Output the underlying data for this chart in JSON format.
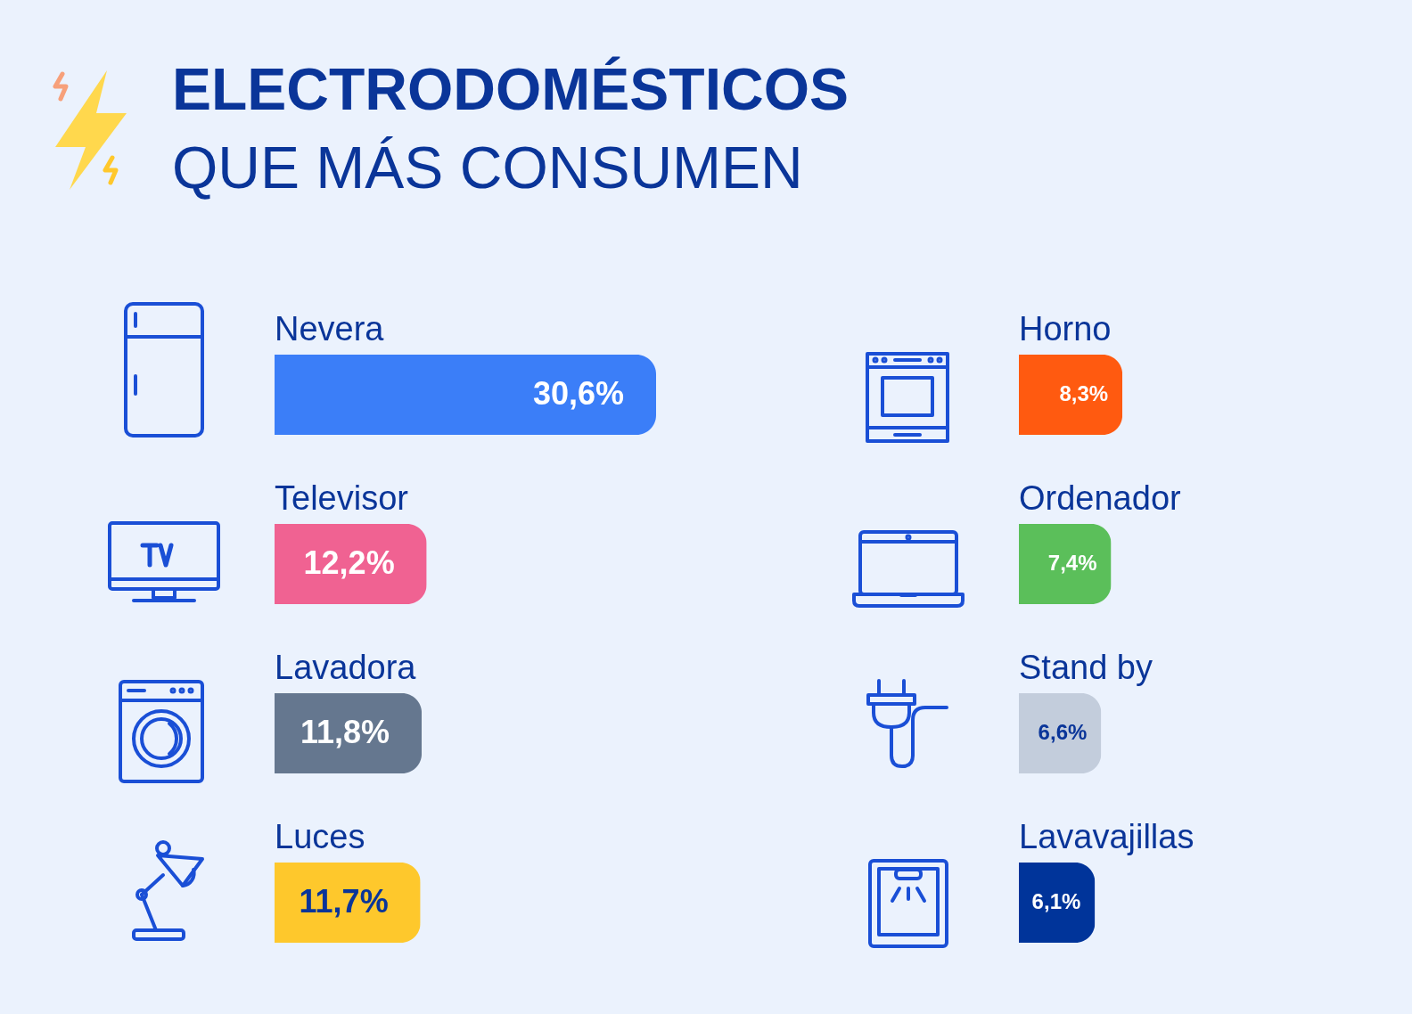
{
  "chart_data": [
    {
      "type": "bar",
      "orientation": "horizontal",
      "title": "ELECTRODOMÉSTICOS",
      "subtitle": "QUE MÁS CONSUMEN",
      "categories": [
        "Nevera",
        "Televisor",
        "Lavadora",
        "Luces"
      ],
      "values": [
        30.6,
        12.2,
        11.8,
        11.7
      ],
      "value_labels": [
        "30,6%",
        "12,2%",
        "11,8%",
        "11,7%"
      ],
      "colors": [
        "#3b7ef8",
        "#f06292",
        "#65778f",
        "#fec82c"
      ]
    },
    {
      "type": "bar",
      "orientation": "horizontal",
      "categories": [
        "Horno",
        "Ordenador",
        "Stand by",
        "Lavavajillas"
      ],
      "values": [
        8.3,
        7.4,
        6.6,
        6.1
      ],
      "value_labels": [
        "8,3%",
        "7,4%",
        "6,6%",
        "6,1%"
      ],
      "colors": [
        "#ff5a10",
        "#5bbf5a",
        "#c3cddc",
        "#00349a"
      ]
    }
  ]
}
